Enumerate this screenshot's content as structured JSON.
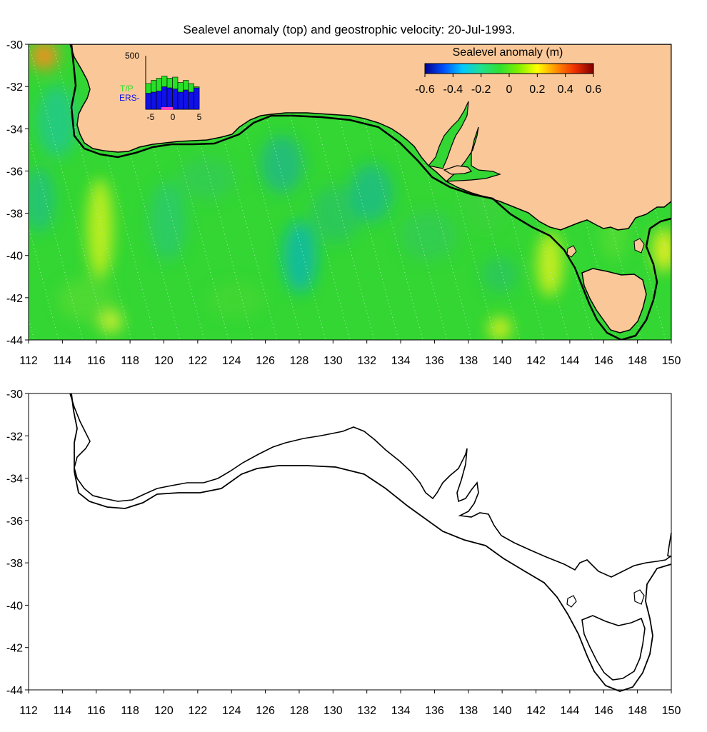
{
  "figure": {
    "title": "Sealevel anomaly (top) and geostrophic velocity: 20-Jul-1993."
  },
  "axes": {
    "x_ticks": [
      "112",
      "114",
      "116",
      "118",
      "120",
      "122",
      "124",
      "126",
      "128",
      "130",
      "132",
      "134",
      "136",
      "138",
      "140",
      "142",
      "144",
      "146",
      "148",
      "150"
    ],
    "y_ticks": [
      "-30",
      "-32",
      "-34",
      "-36",
      "-38",
      "-40",
      "-42",
      "-44"
    ]
  },
  "top_map": {
    "colors": {
      "land": "#fac898",
      "ocean": "#33d633",
      "coast": "#000000"
    },
    "colorbar": {
      "title": "Sealevel anomaly (m)",
      "ticks": [
        "-0.6",
        "-0.4",
        "-0.2",
        "0",
        "0.2",
        "0.4",
        "0.6"
      ],
      "range": [
        -0.6,
        0.6
      ],
      "stops": [
        "#00008f",
        "#0050ff",
        "#00c8ff",
        "#20e090",
        "#30e030",
        "#80f000",
        "#ffff00",
        "#ff9000",
        "#f03000",
        "#800000"
      ]
    },
    "inset": {
      "ymax_label": "500",
      "x_ticks": [
        "-5",
        "0",
        "5"
      ],
      "legend_tp": "T/P",
      "legend_ers": "ERS-",
      "tp_color": "#28e028",
      "ers_color": "#1010e8",
      "tp_bars": [
        240,
        270,
        290,
        310,
        290,
        300,
        250,
        270,
        240,
        210
      ],
      "ers_bars": [
        150,
        160,
        170,
        210,
        200,
        190,
        160,
        180,
        160,
        200
      ],
      "ymax": 500
    }
  },
  "bottom_map": {
    "colors": {
      "background": "#ffffff",
      "coast": "#000000"
    }
  }
}
